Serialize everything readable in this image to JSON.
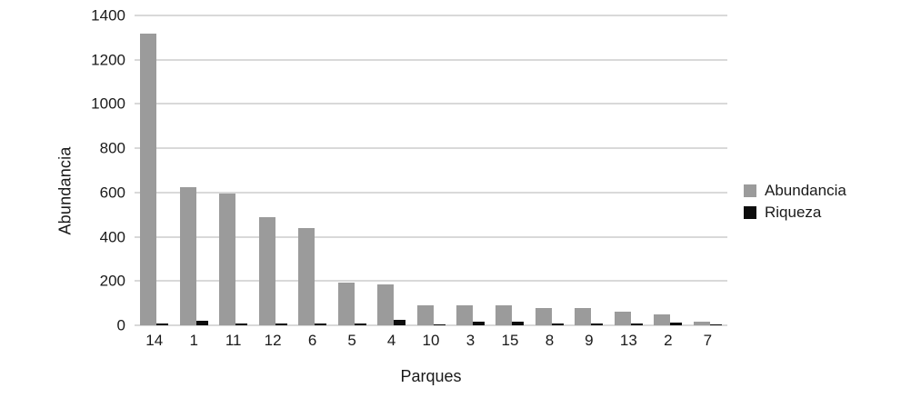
{
  "chart_data": {
    "type": "bar",
    "title": "",
    "xlabel": "Parques",
    "ylabel": "Abundancia",
    "categories": [
      "14",
      "1",
      "11",
      "12",
      "6",
      "5",
      "4",
      "10",
      "3",
      "15",
      "8",
      "9",
      "13",
      "2",
      "7"
    ],
    "series": [
      {
        "name": "Abundancia",
        "color": "#9b9b9b",
        "values": [
          1320,
          625,
          595,
          490,
          440,
          195,
          185,
          92,
          90,
          90,
          80,
          80,
          60,
          48,
          15
        ]
      },
      {
        "name": "Riqueza",
        "color": "#0d0d0d",
        "values": [
          10,
          22,
          9,
          7,
          9,
          8,
          24,
          5,
          16,
          15,
          10,
          10,
          8,
          13,
          4
        ]
      }
    ],
    "ylim": [
      0,
      1400
    ],
    "yticks": [
      0,
      200,
      400,
      600,
      800,
      1000,
      1200,
      1400
    ],
    "grid": "horizontal",
    "gridline_color": "#d9d9d9",
    "legend_position": "right",
    "background": "#ffffff"
  }
}
